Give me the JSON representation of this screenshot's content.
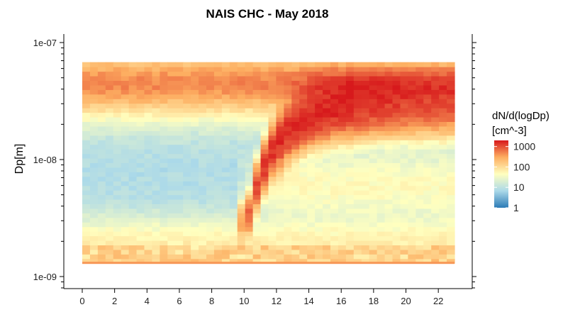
{
  "chart_data": {
    "type": "heatmap",
    "title": "NAIS CHC - May 2018",
    "xlabel": "",
    "ylabel": "Dp[m]",
    "x_range": [
      0,
      23
    ],
    "x_ticks": [
      0,
      2,
      4,
      6,
      8,
      10,
      12,
      14,
      16,
      18,
      20,
      22
    ],
    "x_tick_labels": [
      "0",
      "2",
      "4",
      "6",
      "8",
      "10",
      "12",
      "14",
      "16",
      "18",
      "20",
      "22"
    ],
    "y_scale": "log",
    "y_range": [
      8e-10,
      1.2e-07
    ],
    "y_data_range": [
      1.3e-09,
      6.8e-08
    ],
    "y_ticks": [
      1e-09,
      1e-08,
      1e-07
    ],
    "y_tick_labels": [
      "1e-09",
      "1e-08",
      "1e-07"
    ],
    "colorbar": {
      "title_line1": "dN/d(logDp)",
      "title_line2": "[cm^-3]",
      "scale": "log",
      "range": [
        1,
        2000
      ],
      "ticks": [
        1,
        10,
        100,
        1000
      ],
      "tick_labels": [
        "1",
        "10",
        "100",
        "1000"
      ],
      "colors": [
        "#2c7bb6",
        "#abd9e9",
        "#ffffbf",
        "#fdae61",
        "#d7191c"
      ]
    },
    "hour_bins": 48,
    "diameter_bins": 44,
    "features": {
      "background_mode_diameter": 4.5e-08,
      "background_mode_concentration": 500,
      "mid_range_minimum_concentration": 8,
      "nucleation_event_start_hour": 10.2,
      "nucleation_start_diameter": 3e-09,
      "growth_peak_hour": 13.8,
      "growth_peak_diameter": 2.8e-08,
      "growth_peak_concentration": 1700,
      "evening_mode_diameter": 4.2e-08,
      "evening_mode_concentration": 1100,
      "smallest_bin_concentration": 120
    }
  }
}
